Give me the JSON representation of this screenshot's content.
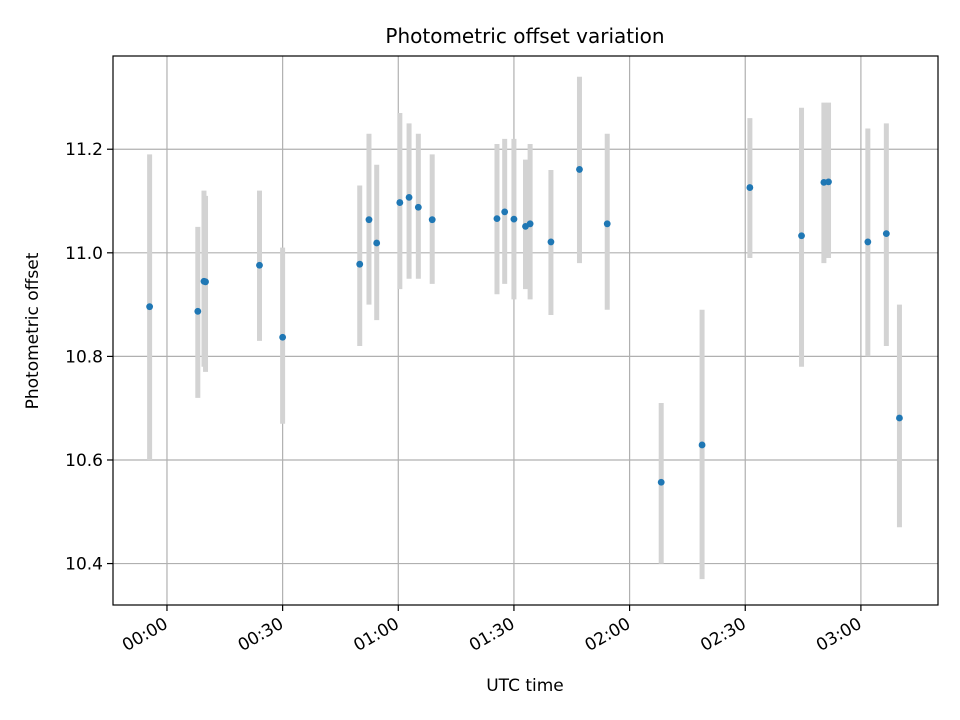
{
  "chart_data": {
    "type": "scatter",
    "title": "Photometric offset variation",
    "xlabel": "UTC time",
    "ylabel": "Photometric offset",
    "x_unit": "UTC time (HH:MM)",
    "xlim": [
      "23:46",
      "03:20"
    ],
    "ylim": [
      10.32,
      11.38
    ],
    "x_ticks": [
      "00:00",
      "00:30",
      "01:00",
      "01:30",
      "02:00",
      "02:30",
      "03:00"
    ],
    "y_ticks": [
      10.4,
      10.6,
      10.8,
      11.0,
      11.2
    ],
    "y_tick_labels": [
      "10.4",
      "10.6",
      "10.8",
      "11.0",
      "11.2"
    ],
    "grid": true,
    "colors": {
      "marker": "#1f77b4",
      "errorbar": "#d3d3d3",
      "grid": "#b0b0b0",
      "axes": "#000000"
    },
    "series": [
      {
        "points": [
          {
            "x": "23:55:30",
            "y": 10.896,
            "ylo": 10.6,
            "yhi": 11.19
          },
          {
            "x": "00:08:00",
            "y": 10.887,
            "ylo": 10.72,
            "yhi": 11.05
          },
          {
            "x": "00:09:36",
            "y": 10.945,
            "ylo": 10.78,
            "yhi": 11.12
          },
          {
            "x": "00:10:00",
            "y": 10.944,
            "ylo": 10.77,
            "yhi": 11.11
          },
          {
            "x": "00:24:00",
            "y": 10.976,
            "ylo": 10.83,
            "yhi": 11.12
          },
          {
            "x": "00:30:00",
            "y": 10.837,
            "ylo": 10.67,
            "yhi": 11.01
          },
          {
            "x": "00:50:00",
            "y": 10.978,
            "ylo": 10.82,
            "yhi": 11.13
          },
          {
            "x": "00:52:24",
            "y": 11.064,
            "ylo": 10.9,
            "yhi": 11.23
          },
          {
            "x": "00:54:24",
            "y": 11.019,
            "ylo": 10.87,
            "yhi": 11.17
          },
          {
            "x": "01:00:24",
            "y": 11.097,
            "ylo": 10.93,
            "yhi": 11.27
          },
          {
            "x": "01:02:48",
            "y": 11.107,
            "ylo": 10.95,
            "yhi": 11.25
          },
          {
            "x": "01:05:12",
            "y": 11.088,
            "ylo": 10.95,
            "yhi": 11.23
          },
          {
            "x": "01:08:48",
            "y": 11.064,
            "ylo": 10.94,
            "yhi": 11.19
          },
          {
            "x": "01:25:36",
            "y": 11.066,
            "ylo": 10.92,
            "yhi": 11.21
          },
          {
            "x": "01:27:36",
            "y": 11.079,
            "ylo": 10.94,
            "yhi": 11.22
          },
          {
            "x": "01:30:00",
            "y": 11.065,
            "ylo": 10.91,
            "yhi": 11.22
          },
          {
            "x": "01:33:00",
            "y": 11.051,
            "ylo": 10.93,
            "yhi": 11.18
          },
          {
            "x": "01:34:12",
            "y": 11.056,
            "ylo": 10.91,
            "yhi": 11.21
          },
          {
            "x": "01:39:36",
            "y": 11.021,
            "ylo": 10.88,
            "yhi": 11.16
          },
          {
            "x": "01:47:00",
            "y": 11.161,
            "ylo": 10.98,
            "yhi": 11.34
          },
          {
            "x": "01:54:12",
            "y": 11.056,
            "ylo": 10.89,
            "yhi": 11.23
          },
          {
            "x": "02:08:12",
            "y": 10.557,
            "ylo": 10.4,
            "yhi": 10.71
          },
          {
            "x": "02:18:48",
            "y": 10.629,
            "ylo": 10.37,
            "yhi": 10.89
          },
          {
            "x": "02:31:12",
            "y": 11.126,
            "ylo": 10.99,
            "yhi": 11.26
          },
          {
            "x": "02:44:36",
            "y": 11.033,
            "ylo": 10.78,
            "yhi": 11.28
          },
          {
            "x": "02:50:24",
            "y": 11.136,
            "ylo": 10.98,
            "yhi": 11.29
          },
          {
            "x": "02:51:36",
            "y": 11.137,
            "ylo": 10.99,
            "yhi": 11.29
          },
          {
            "x": "03:01:48",
            "y": 11.021,
            "ylo": 10.8,
            "yhi": 11.24
          },
          {
            "x": "03:06:36",
            "y": 11.037,
            "ylo": 10.82,
            "yhi": 11.25
          },
          {
            "x": "03:10:00",
            "y": 10.681,
            "ylo": 10.47,
            "yhi": 10.9
          }
        ]
      }
    ]
  }
}
